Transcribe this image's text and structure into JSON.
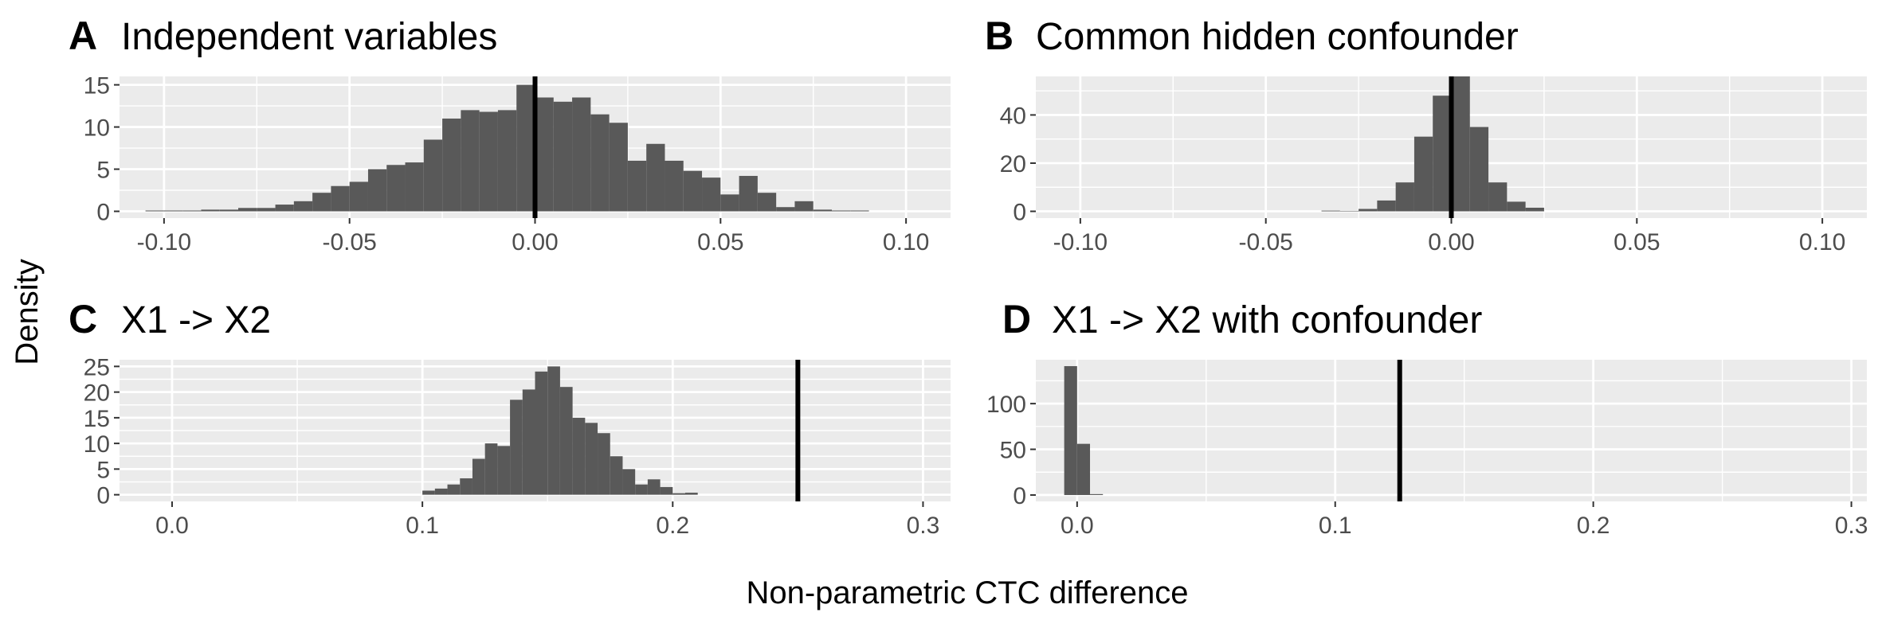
{
  "figure": {
    "ylabel": "Density",
    "xlabel": "Non-parametric CTC difference"
  },
  "colors": {
    "panel_bg": "#ebebeb",
    "grid": "#ffffff",
    "bar": "#595959",
    "vline": "#000000",
    "tick_text": "#4d4d4d"
  },
  "chart_data": [
    {
      "id": "A",
      "letter": "A",
      "title": "Independent variables",
      "type": "bar",
      "xlim": [
        -0.112,
        0.112
      ],
      "ylim": [
        -0.8,
        16
      ],
      "x_ticks": [
        -0.1,
        -0.05,
        0.0,
        0.05,
        0.1
      ],
      "x_tick_labels": [
        "-0.10",
        "-0.05",
        "0.00",
        "0.05",
        "0.10"
      ],
      "y_ticks": [
        0,
        5,
        10,
        15
      ],
      "y_tick_labels": [
        "0",
        "5",
        "10",
        "15"
      ],
      "bin_width": 0.005,
      "bin_starts": [
        -0.105,
        -0.1,
        -0.095,
        -0.09,
        -0.085,
        -0.08,
        -0.075,
        -0.07,
        -0.065,
        -0.06,
        -0.055,
        -0.05,
        -0.045,
        -0.04,
        -0.035,
        -0.03,
        -0.025,
        -0.02,
        -0.015,
        -0.01,
        -0.005,
        0.0,
        0.005,
        0.01,
        0.015,
        0.02,
        0.025,
        0.03,
        0.035,
        0.04,
        0.045,
        0.05,
        0.055,
        0.06,
        0.065,
        0.07,
        0.075,
        0.08,
        0.085
      ],
      "values": [
        0.1,
        0.1,
        0.1,
        0.2,
        0.2,
        0.4,
        0.4,
        0.8,
        1.2,
        2.2,
        3.0,
        3.5,
        5.0,
        5.5,
        5.8,
        8.5,
        11.0,
        12.0,
        11.8,
        12.0,
        15.0,
        13.5,
        13.0,
        13.5,
        11.5,
        10.5,
        6.0,
        8.0,
        6.0,
        4.8,
        4.0,
        2.0,
        4.2,
        2.2,
        0.5,
        1.2,
        0.2,
        0.1,
        0.1
      ],
      "vline": 0.0
    },
    {
      "id": "B",
      "letter": "B",
      "title": "Common hidden confounder",
      "type": "bar",
      "xlim": [
        -0.112,
        0.112
      ],
      "ylim": [
        -2.8,
        56
      ],
      "x_ticks": [
        -0.1,
        -0.05,
        0.0,
        0.05,
        0.1
      ],
      "x_tick_labels": [
        "-0.10",
        "-0.05",
        "0.00",
        "0.05",
        "0.10"
      ],
      "y_ticks": [
        0,
        20,
        40
      ],
      "y_tick_labels": [
        "0",
        "20",
        "40"
      ],
      "bin_width": 0.005,
      "bin_starts": [
        -0.035,
        -0.03,
        -0.025,
        -0.02,
        -0.015,
        -0.01,
        -0.005,
        0.0,
        0.005,
        0.01,
        0.015,
        0.02
      ],
      "values": [
        0.3,
        0.2,
        1.0,
        4.5,
        12.0,
        31.0,
        48.0,
        56.0,
        35.0,
        12.0,
        4.0,
        1.5
      ],
      "vline": 0.0
    },
    {
      "id": "C",
      "letter": "C",
      "title": "X1 -> X2",
      "type": "bar",
      "xlim": [
        -0.021,
        0.311
      ],
      "ylim": [
        -1.3,
        26.3
      ],
      "x_ticks": [
        0.0,
        0.1,
        0.2,
        0.3
      ],
      "x_tick_labels": [
        "0.0",
        "0.1",
        "0.2",
        "0.3"
      ],
      "y_ticks": [
        0,
        5,
        10,
        15,
        20,
        25
      ],
      "y_tick_labels": [
        "0",
        "5",
        "10",
        "15",
        "20",
        "25"
      ],
      "bin_width": 0.005,
      "bin_starts": [
        0.1,
        0.105,
        0.11,
        0.115,
        0.12,
        0.125,
        0.13,
        0.135,
        0.14,
        0.145,
        0.15,
        0.155,
        0.16,
        0.165,
        0.17,
        0.175,
        0.18,
        0.185,
        0.19,
        0.195,
        0.2,
        0.205
      ],
      "values": [
        0.8,
        1.2,
        2.0,
        3.2,
        7.0,
        10.0,
        9.5,
        18.5,
        20.5,
        24.0,
        25.0,
        21.0,
        15.0,
        14.0,
        12.0,
        7.5,
        5.0,
        2.0,
        3.0,
        1.5,
        0.3,
        0.4
      ],
      "vline": 0.25
    },
    {
      "id": "D",
      "letter": "D",
      "title": "X1 -> X2 with confounder",
      "type": "bar",
      "xlim": [
        -0.016,
        0.306
      ],
      "ylim": [
        -7,
        148
      ],
      "x_ticks": [
        0.0,
        0.1,
        0.2,
        0.3
      ],
      "x_tick_labels": [
        "0.0",
        "0.1",
        "0.2",
        "0.3"
      ],
      "y_ticks": [
        0,
        50,
        100
      ],
      "y_tick_labels": [
        "0",
        "50",
        "100"
      ],
      "bin_width": 0.005,
      "bin_starts": [
        -0.005,
        0.0,
        0.005
      ],
      "values": [
        141.0,
        56.0,
        1.0
      ],
      "vline": 0.125
    }
  ]
}
